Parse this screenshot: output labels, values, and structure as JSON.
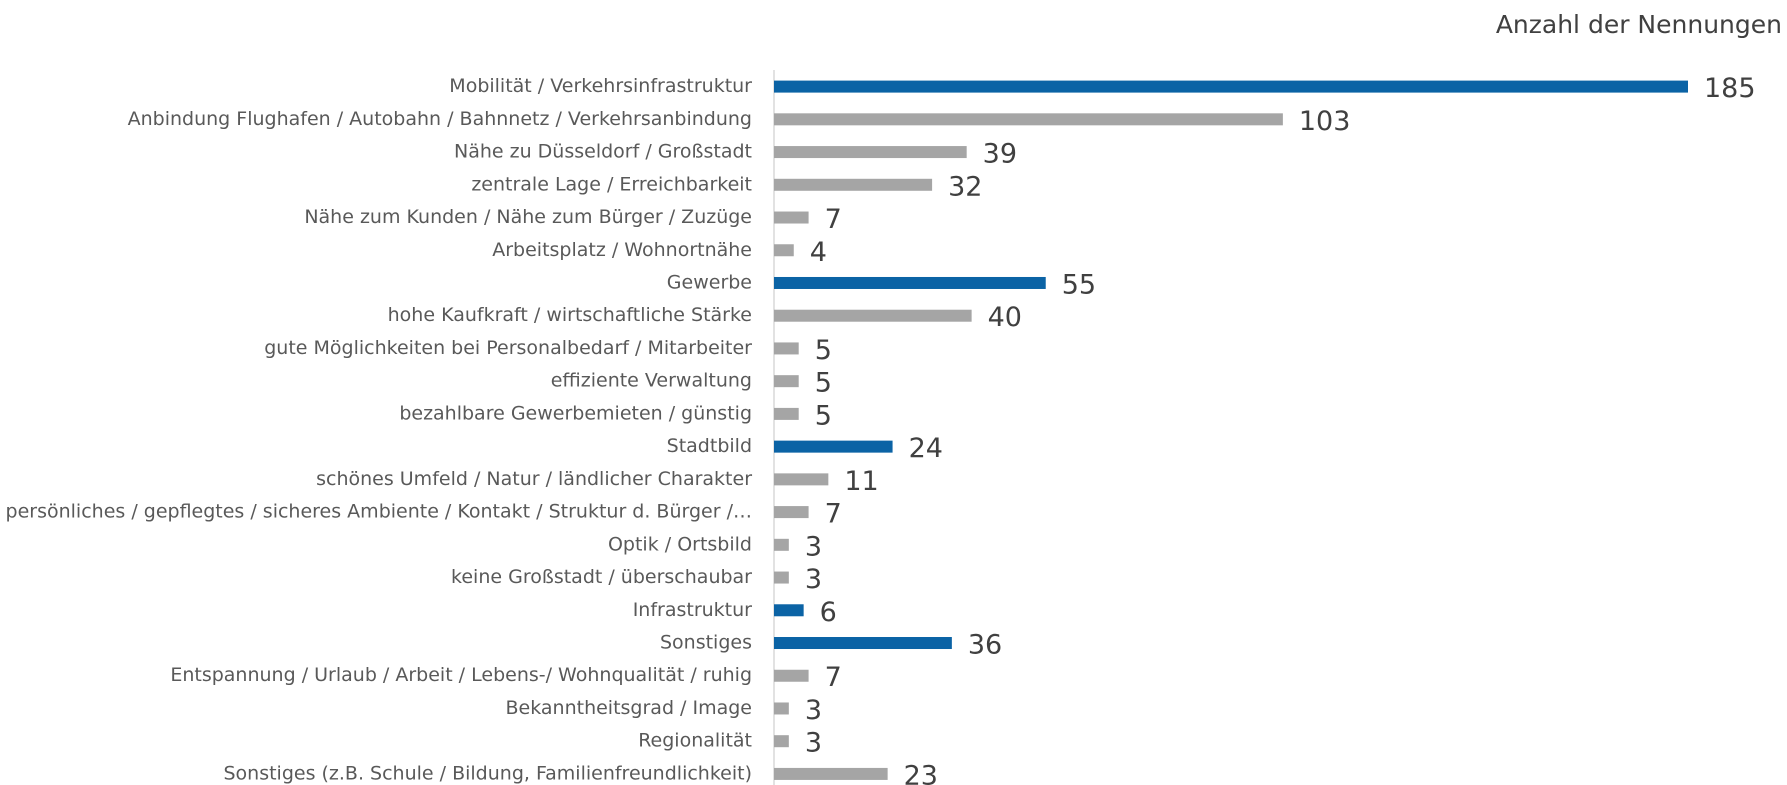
{
  "chart_data": {
    "type": "barh",
    "title": "Anzahl der Nennungen",
    "categories": [
      "Mobilität / Verkehrsinfrastruktur",
      "Anbindung Flughafen / Autobahn / Bahnnetz / Verkehrsanbindung",
      "Nähe zu Düsseldorf / Großstadt",
      "zentrale Lage / Erreichbarkeit",
      "Nähe zum Kunden / Nähe zum Bürger / Zuzüge",
      "Arbeitsplatz / Wohnortnähe",
      "Gewerbe",
      "hohe Kaufkraft / wirtschaftliche Stärke",
      "gute Möglichkeiten bei Personalbedarf / Mitarbeiter",
      "effiziente Verwaltung",
      "bezahlbare Gewerbemieten / günstig",
      "Stadtbild",
      "schönes Umfeld / Natur / ländlicher Charakter",
      "persönliches / gepflegtes / sicheres Ambiente / Kontakt / Struktur d. Bürger /…",
      "Optik / Ortsbild",
      "keine Großstadt / überschaubar",
      "Infrastruktur",
      "Sonstiges",
      "Entspannung / Urlaub / Arbeit / Lebens-/ Wohnqualität / ruhig",
      "Bekanntheitsgrad / Image",
      "Regionalität",
      "Sonstiges (z.B. Schule / Bildung, Familienfreundlichkeit)"
    ],
    "values": [
      185,
      103,
      39,
      32,
      7,
      4,
      55,
      40,
      5,
      5,
      5,
      24,
      11,
      7,
      3,
      3,
      6,
      36,
      7,
      3,
      3,
      23
    ],
    "colors": [
      "#0b63a5",
      "#a5a5a5",
      "#a5a5a5",
      "#a5a5a5",
      "#a5a5a5",
      "#a5a5a5",
      "#0b63a5",
      "#a5a5a5",
      "#a5a5a5",
      "#a5a5a5",
      "#a5a5a5",
      "#0b63a5",
      "#a5a5a5",
      "#a5a5a5",
      "#a5a5a5",
      "#a5a5a5",
      "#0b63a5",
      "#0b63a5",
      "#a5a5a5",
      "#a5a5a5",
      "#a5a5a5",
      "#a5a5a5"
    ]
  }
}
